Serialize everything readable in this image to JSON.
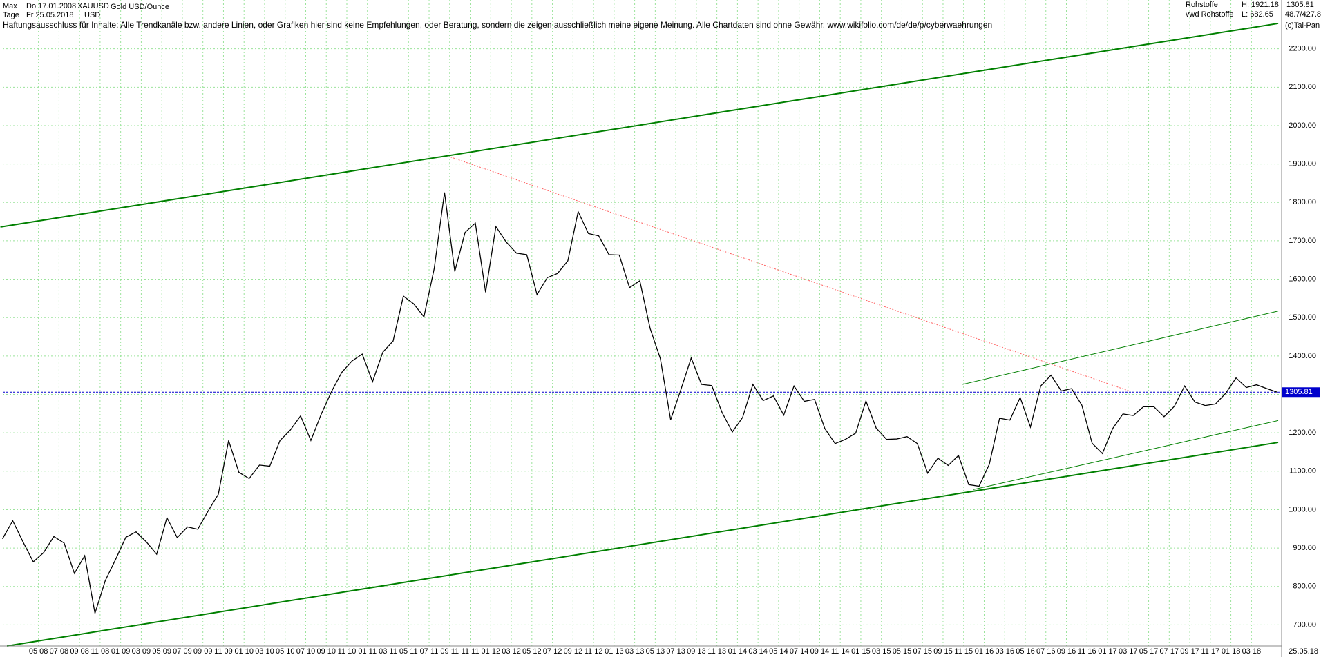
{
  "header": {
    "range": "Max",
    "start_date": "Do 17.01.2008",
    "symbol": "XAUUSD",
    "instrument": "Gold USD/Ounce",
    "period": "Tage",
    "end_date": "Fr 25.05.2018",
    "currency": "USD",
    "market": "Rohstoffe",
    "high": "H: 1921.18",
    "source": "vwd Rohstoffe",
    "low": "L: 682.65",
    "ratio": "48.7/427.8",
    "copyright": "(c)Tai-Pan",
    "disclaimer": "Haftungsausschluss für Inhalte: Alle Trendkanäle bzw. andere Linien, oder Grafiken hier sind keine Empfehlungen, oder Beratung, sondern die zeigen ausschließlich meine eigene Meinung. Alle Chartdaten sind ohne Gewähr.  www.wikifolio.com/de/de/p/cyberwaehrungen"
  },
  "chart_data": {
    "type": "line",
    "grid": true,
    "xlim": [
      0.53,
      124.8
    ],
    "ylim": [
      645,
      2327
    ],
    "yticks": [
      700,
      800,
      900,
      1000,
      1100,
      1200,
      1300,
      1400,
      1500,
      1600,
      1700,
      1800,
      1900,
      2000,
      2100,
      2200
    ],
    "ytick_labels": [
      "700.00",
      "800.00",
      "900.00",
      "1000.00",
      "1100.00",
      "1200.00",
      "1300.00",
      "1400.00",
      "1500.00",
      "1600.00",
      "1700.00",
      "1800.00",
      "1900.00",
      "2000.00",
      "2100.00",
      "2200.00"
    ],
    "xticks": [
      {
        "value": 4,
        "label": "05 08"
      },
      {
        "value": 6,
        "label": "07 08"
      },
      {
        "value": 8,
        "label": "09 08"
      },
      {
        "value": 10,
        "label": "11 08"
      },
      {
        "value": 12,
        "label": "01 09"
      },
      {
        "value": 14,
        "label": "03 09"
      },
      {
        "value": 16,
        "label": "05 09"
      },
      {
        "value": 18,
        "label": "07 09"
      },
      {
        "value": 20,
        "label": "09 09"
      },
      {
        "value": 22,
        "label": "11 09"
      },
      {
        "value": 24,
        "label": "01 10"
      },
      {
        "value": 26,
        "label": "03 10"
      },
      {
        "value": 28,
        "label": "05 10"
      },
      {
        "value": 30,
        "label": "07 10"
      },
      {
        "value": 32,
        "label": "09 10"
      },
      {
        "value": 34,
        "label": "11 10"
      },
      {
        "value": 36,
        "label": "01 11"
      },
      {
        "value": 38,
        "label": "03 11"
      },
      {
        "value": 40,
        "label": "05 11"
      },
      {
        "value": 42,
        "label": "07 11"
      },
      {
        "value": 44,
        "label": "09 11"
      },
      {
        "value": 46,
        "label": "11 11"
      },
      {
        "value": 48,
        "label": "01 12"
      },
      {
        "value": 50,
        "label": "03 12"
      },
      {
        "value": 52,
        "label": "05 12"
      },
      {
        "value": 54,
        "label": "07 12"
      },
      {
        "value": 56,
        "label": "09 12"
      },
      {
        "value": 58,
        "label": "11 12"
      },
      {
        "value": 60,
        "label": "01 13"
      },
      {
        "value": 62,
        "label": "03 13"
      },
      {
        "value": 64,
        "label": "05 13"
      },
      {
        "value": 66,
        "label": "07 13"
      },
      {
        "value": 68,
        "label": "09 13"
      },
      {
        "value": 70,
        "label": "11 13"
      },
      {
        "value": 72,
        "label": "01 14"
      },
      {
        "value": 74,
        "label": "03 14"
      },
      {
        "value": 76,
        "label": "05 14"
      },
      {
        "value": 78,
        "label": "07 14"
      },
      {
        "value": 80,
        "label": "09 14"
      },
      {
        "value": 82,
        "label": "11 14"
      },
      {
        "value": 84,
        "label": "01 15"
      },
      {
        "value": 86,
        "label": "03 15"
      },
      {
        "value": 88,
        "label": "05 15"
      },
      {
        "value": 90,
        "label": "07 15"
      },
      {
        "value": 92,
        "label": "09 15"
      },
      {
        "value": 94,
        "label": "11 15"
      },
      {
        "value": 96,
        "label": "01 16"
      },
      {
        "value": 98,
        "label": "03 16"
      },
      {
        "value": 100,
        "label": "05 16"
      },
      {
        "value": 102,
        "label": "07 16"
      },
      {
        "value": 104,
        "label": "09 16"
      },
      {
        "value": 106,
        "label": "11 16"
      },
      {
        "value": 108,
        "label": "01 17"
      },
      {
        "value": 110,
        "label": "03 17"
      },
      {
        "value": 112,
        "label": "05 17"
      },
      {
        "value": 114,
        "label": "07 17"
      },
      {
        "value": 116,
        "label": "09 17"
      },
      {
        "value": 118,
        "label": "11 17"
      },
      {
        "value": 120,
        "label": "01 18"
      },
      {
        "value": 122,
        "label": "03 18"
      }
    ],
    "end_label": "25.05.18",
    "x": [
      0.5,
      1.5,
      2.5,
      3.5,
      4.5,
      5.5,
      6.5,
      7.5,
      8.5,
      9.5,
      10.5,
      11.5,
      12.5,
      13.5,
      14.5,
      15.5,
      16.5,
      17.5,
      18.5,
      19.5,
      20.5,
      21.5,
      22.5,
      23.5,
      24.5,
      25.5,
      26.5,
      27.5,
      28.5,
      29.5,
      30.5,
      31.5,
      32.5,
      33.5,
      34.5,
      35.5,
      36.5,
      37.5,
      38.5,
      39.5,
      40.5,
      41.5,
      42.5,
      43.5,
      44.5,
      45.5,
      46.5,
      47.5,
      48.5,
      49.5,
      50.5,
      51.5,
      52.5,
      53.5,
      54.5,
      55.5,
      56.5,
      57.5,
      58.5,
      59.5,
      60.5,
      61.5,
      62.5,
      63.5,
      64.5,
      65.5,
      66.5,
      67.5,
      68.5,
      69.5,
      70.5,
      71.5,
      72.5,
      73.5,
      74.5,
      75.5,
      76.5,
      77.5,
      78.5,
      79.5,
      80.5,
      81.5,
      82.5,
      83.5,
      84.5,
      85.5,
      86.5,
      87.5,
      88.5,
      89.5,
      90.5,
      91.5,
      92.5,
      93.5,
      94.5,
      95.5,
      96.5,
      97.5,
      98.5,
      99.5,
      100.5,
      101.5,
      102.5,
      103.5,
      104.5,
      105.5,
      106.5,
      107.5,
      108.5,
      109.5,
      110.5,
      111.5,
      112.5,
      113.5,
      114.5,
      115.5,
      116.5,
      117.5,
      118.5,
      119.5,
      120.5,
      121.5,
      122.5,
      123.5,
      124.5
    ],
    "series": [
      {
        "color": "#000000",
        "values": [
          924,
          971,
          916,
          864,
          888,
          930,
          913,
          834,
          880,
          730,
          815,
          870,
          928,
          942,
          916,
          884,
          979,
          927,
          955,
          949,
          996,
          1040,
          1180,
          1097,
          1081,
          1116,
          1113,
          1180,
          1207,
          1244,
          1180,
          1248,
          1307,
          1357,
          1387,
          1405,
          1333,
          1410,
          1439,
          1556,
          1536,
          1502,
          1628,
          1826,
          1620,
          1722,
          1746,
          1566,
          1737,
          1697,
          1668,
          1664,
          1560,
          1604,
          1615,
          1648,
          1776,
          1719,
          1713,
          1664,
          1663,
          1578,
          1596,
          1472,
          1393,
          1234,
          1313,
          1395,
          1326,
          1323,
          1253,
          1202,
          1240,
          1326,
          1284,
          1296,
          1246,
          1322,
          1282,
          1287,
          1211,
          1172,
          1183,
          1199,
          1283,
          1212,
          1183,
          1184,
          1190,
          1172,
          1095,
          1134,
          1115,
          1141,
          1065,
          1061,
          1118,
          1238,
          1233,
          1292,
          1215,
          1322,
          1350,
          1309,
          1315,
          1272,
          1173,
          1146,
          1211,
          1249,
          1245,
          1268,
          1268,
          1242,
          1269,
          1322,
          1280,
          1271,
          1275,
          1303,
          1343,
          1318,
          1325,
          1315,
          1305.81
        ]
      }
    ],
    "trendlines": [
      {
        "color": "#008000",
        "width": 2,
        "x": [
          0.3,
          124.6
        ],
        "y": [
          1736,
          2266
        ]
      },
      {
        "color": "#008000",
        "width": 2,
        "x": [
          0.94,
          124.6
        ],
        "y": [
          645,
          1175
        ]
      },
      {
        "color": "#008000",
        "width": 1,
        "x": [
          94.9,
          124.6
        ],
        "y": [
          1052,
          1232
        ]
      },
      {
        "color": "#008000",
        "width": 1,
        "x": [
          93.9,
          124.6
        ],
        "y": [
          1326,
          1517
        ]
      },
      {
        "color": "#ff6060",
        "width": 1,
        "dash": true,
        "x": [
          44.1,
          110.1
        ],
        "y": [
          1918,
          1309
        ]
      }
    ],
    "last_line_color": "#0000cc"
  }
}
